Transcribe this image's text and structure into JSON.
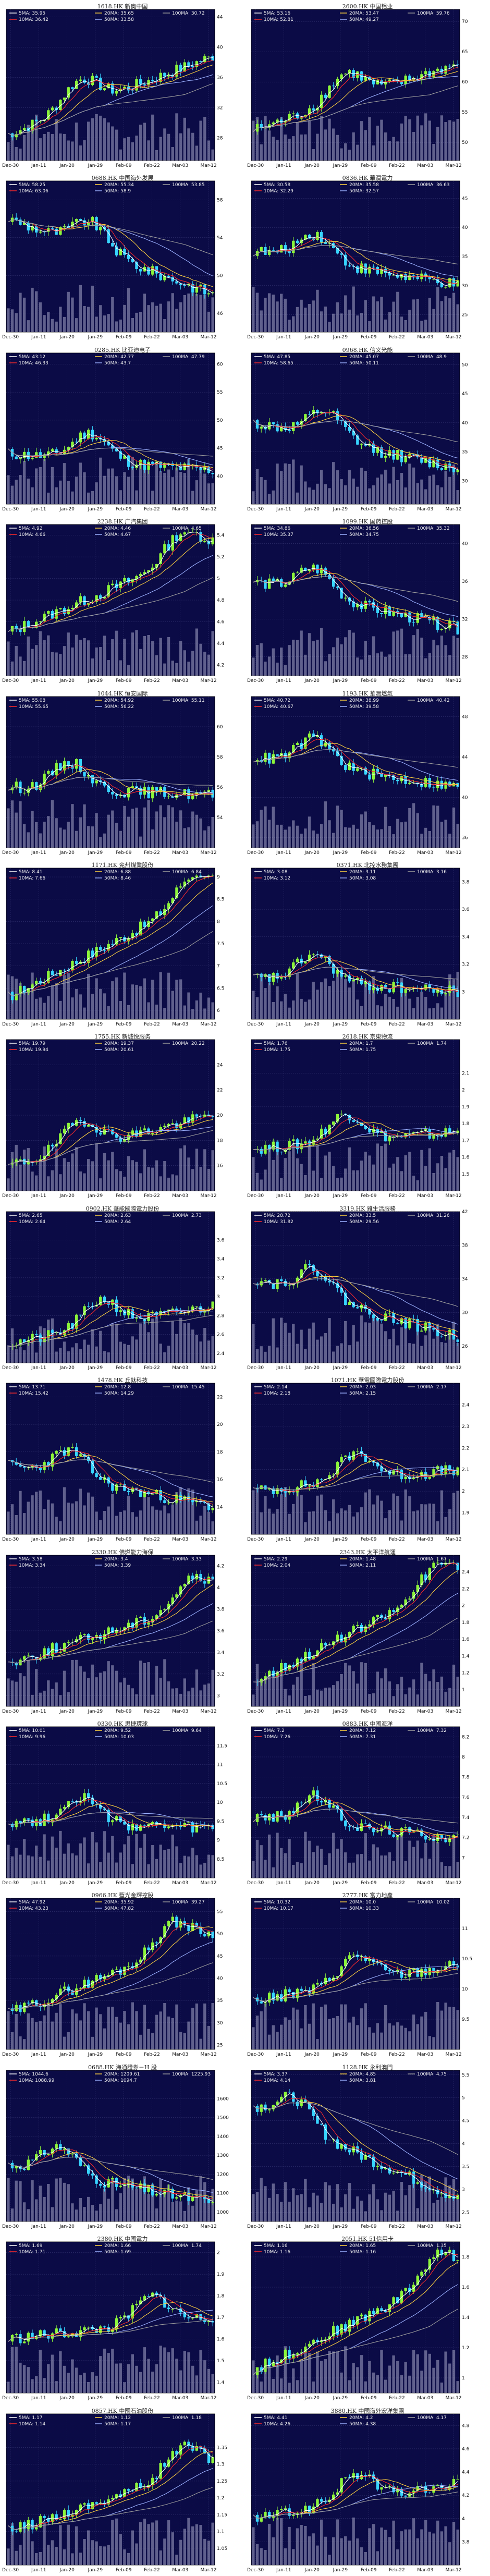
{
  "colors": {
    "background": "#0b0b46",
    "up": "#8cf53a",
    "down": "#37d4ff",
    "sma5": "#ffffff",
    "sma10": "#ff2a2a",
    "sma20": "#ffd23f",
    "sma50": "#9bb0ff",
    "sma100": "#9c9c9c",
    "volume": "#a7a7c9",
    "grid": "#3d3d7a"
  },
  "x_labels": [
    "Dec-30",
    "Jan-11",
    "Jan-20",
    "Jan-29",
    "Feb-09",
    "Feb-22",
    "Mar-03",
    "Mar-12"
  ],
  "legend_labels": {
    "sma5": "5MA",
    "sma10": "10MA",
    "sma20": "20MA",
    "sma50": "50MA",
    "sma100": "100MA"
  },
  "chart_data": [
    {
      "type": "candlestick",
      "title": "1618.HK 新奥中国",
      "ylim": [
        25,
        45
      ],
      "yticks": [
        28,
        32,
        36,
        40,
        44
      ],
      "start": 28.5,
      "end": 38.8,
      "peak": 0.35,
      "legend": {
        "sma5": "35.95",
        "sma10": "36.42",
        "sma20": "35.65",
        "sma50": "33.58",
        "sma100": "30.72"
      }
    },
    {
      "type": "candlestick",
      "title": "2600.HK 中国铝业",
      "ylim": [
        47,
        72
      ],
      "yticks": [
        50,
        55,
        60,
        65,
        70
      ],
      "start": 52,
      "end": 63,
      "peak": 0.45,
      "legend": {
        "sma5": "53.16",
        "sma10": "52.81",
        "sma20": "53.47",
        "sma50": "49.27",
        "sma100": "59.76"
      }
    },
    {
      "type": "candlestick",
      "title": "0688.HK 中国海外发展",
      "ylim": [
        44,
        60
      ],
      "yticks": [
        46,
        50,
        54,
        58
      ],
      "start": 56,
      "end": 48,
      "peak": 0.4,
      "legend": {
        "sma5": "58.25",
        "sma10": "63.06",
        "sma20": "55.34",
        "sma50": "58.9",
        "sma100": "53.85"
      }
    },
    {
      "type": "candlestick",
      "title": "0836.HK 華潤電力",
      "ylim": [
        22,
        48
      ],
      "yticks": [
        25,
        30,
        35,
        40,
        45
      ],
      "start": 36,
      "end": 30,
      "peak": 0.3,
      "legend": {
        "sma5": "30.58",
        "sma10": "32.29",
        "sma20": "35.58",
        "sma50": "32.57",
        "sma100": "36.63"
      }
    },
    {
      "type": "candlestick",
      "title": "0285.HK 比亚迪电子",
      "ylim": [
        35,
        62
      ],
      "yticks": [
        40,
        45,
        50,
        55,
        60
      ],
      "start": 44,
      "end": 41,
      "peak": 0.4,
      "legend": {
        "sma5": "43.12",
        "sma10": "46.33",
        "sma20": "42.77",
        "sma50": "43.7",
        "sma100": "47.79"
      }
    },
    {
      "type": "candlestick",
      "title": "0968.HK 信义光能",
      "ylim": [
        26,
        52
      ],
      "yticks": [
        30,
        35,
        40,
        45,
        50
      ],
      "start": 40,
      "end": 32,
      "peak": 0.35,
      "legend": {
        "sma5": "47.85",
        "sma10": "58.65",
        "sma20": "45.07",
        "sma50": "50.11",
        "sma100": "48.9"
      }
    },
    {
      "type": "candlestick",
      "title": "2238.HK 广汽集团",
      "ylim": [
        4.1,
        5.5
      ],
      "yticks": [
        4.2,
        4.4,
        4.6,
        4.8,
        5.0,
        5.2,
        5.4
      ],
      "start": 4.5,
      "end": 5.3,
      "peak": 0.85,
      "legend": {
        "sma5": "4.92",
        "sma10": "4.66",
        "sma20": "4.46",
        "sma50": "4.67",
        "sma100": "4.65"
      }
    },
    {
      "type": "candlestick",
      "title": "1099.HK 国药控股",
      "ylim": [
        26,
        42
      ],
      "yticks": [
        28,
        32,
        36,
        40
      ],
      "start": 36,
      "end": 31,
      "peak": 0.3,
      "legend": {
        "sma5": "34.86",
        "sma10": "35.37",
        "sma20": "36.56",
        "sma50": "34.75",
        "sma100": "35.32"
      }
    },
    {
      "type": "candlestick",
      "title": "1044.HK 恒安国际",
      "ylim": [
        52,
        62
      ],
      "yticks": [
        54,
        56,
        58,
        60
      ],
      "start": 56,
      "end": 55.5,
      "peak": 0.3,
      "legend": {
        "sma5": "55.08",
        "sma10": "55.65",
        "sma20": "54.92",
        "sma50": "56.22",
        "sma100": "55.11"
      }
    },
    {
      "type": "candlestick",
      "title": "1193.HK 華潤燃氣",
      "ylim": [
        35,
        50
      ],
      "yticks": [
        36,
        40,
        44,
        48
      ],
      "start": 44,
      "end": 41,
      "peak": 0.3,
      "legend": {
        "sma5": "40.72",
        "sma10": "40.67",
        "sma20": "38.99",
        "sma50": "39.58",
        "sma100": "40.42"
      }
    },
    {
      "type": "candlestick",
      "title": "1171.HK 兖州煤業股份",
      "ylim": [
        5.8,
        9.2
      ],
      "yticks": [
        6.0,
        6.5,
        7.0,
        7.5,
        8.0,
        8.5,
        9.0
      ],
      "start": 6.3,
      "end": 8.7,
      "peak": 0.9,
      "legend": {
        "sma5": "8.41",
        "sma10": "7.66",
        "sma20": "6.88",
        "sma50": "8.46",
        "sma100": "6.84"
      }
    },
    {
      "type": "candlestick",
      "title": "0371.HK 北控水務集團",
      "ylim": [
        2.8,
        3.9
      ],
      "yticks": [
        3.0,
        3.2,
        3.4,
        3.6,
        3.8
      ],
      "start": 3.1,
      "end": 3.0,
      "peak": 0.3,
      "legend": {
        "sma5": "3.08",
        "sma10": "3.12",
        "sma20": "3.11",
        "sma50": "3.08",
        "sma100": "3.16"
      }
    },
    {
      "type": "candlestick",
      "title": "1755.HK 新城悦服务",
      "ylim": [
        14,
        26
      ],
      "yticks": [
        16,
        18,
        20,
        22,
        24
      ],
      "start": 16,
      "end": 20,
      "peak": 0.35,
      "legend": {
        "sma5": "19.79",
        "sma10": "19.94",
        "sma20": "19.37",
        "sma50": "20.61",
        "sma100": "20.22"
      }
    },
    {
      "type": "candlestick",
      "title": "2618.HK 京東物流",
      "ylim": [
        1.4,
        2.3
      ],
      "yticks": [
        1.5,
        1.6,
        1.7,
        1.8,
        1.9,
        2.0,
        2.1
      ],
      "start": 1.65,
      "end": 1.75,
      "peak": 0.45,
      "legend": {
        "sma5": "1.76",
        "sma10": "1.75",
        "sma20": "1.7",
        "sma50": "1.75",
        "sma100": "1.74"
      }
    },
    {
      "type": "candlestick",
      "title": "0902.HK 華能國際電力股份",
      "ylim": [
        2.3,
        3.9
      ],
      "yticks": [
        2.4,
        2.6,
        2.8,
        3.0,
        3.2,
        3.4,
        3.6
      ],
      "start": 2.5,
      "end": 2.9,
      "peak": 0.45,
      "legend": {
        "sma5": "2.65",
        "sma10": "2.64",
        "sma20": "2.63",
        "sma50": "2.64",
        "sma100": "2.73"
      }
    },
    {
      "type": "candlestick",
      "title": "3319.HK 雅生活服務",
      "ylim": [
        24,
        42
      ],
      "yticks": [
        26,
        30,
        34,
        38,
        42
      ],
      "start": 34,
      "end": 27,
      "peak": 0.3,
      "legend": {
        "sma5": "28.72",
        "sma10": "31.82",
        "sma20": "33.5",
        "sma50": "29.56",
        "sma100": "31.26"
      }
    },
    {
      "type": "candlestick",
      "title": "1478.HK 丘鈦科技",
      "ylim": [
        12,
        23
      ],
      "yticks": [
        14,
        16,
        18,
        20,
        22
      ],
      "start": 17,
      "end": 14,
      "peak": 0.3,
      "legend": {
        "sma5": "13.71",
        "sma10": "15.42",
        "sma20": "12.8",
        "sma50": "14.29",
        "sma100": "15.45"
      }
    },
    {
      "type": "candlestick",
      "title": "1071.HK 華電國際電力股份",
      "ylim": [
        1.8,
        2.5
      ],
      "yticks": [
        1.9,
        2.0,
        2.1,
        2.2,
        2.3,
        2.4
      ],
      "start": 2.0,
      "end": 2.1,
      "peak": 0.5,
      "legend": {
        "sma5": "2.14",
        "sma10": "2.18",
        "sma20": "2.03",
        "sma50": "2.15",
        "sma100": "2.17"
      }
    },
    {
      "type": "candlestick",
      "title": "2330.HK 佛燃能力海保",
      "ylim": [
        2.9,
        4.3
      ],
      "yticks": [
        3.0,
        3.2,
        3.4,
        3.6,
        3.8,
        4.0,
        4.2
      ],
      "start": 3.3,
      "end": 3.9,
      "peak": 0.9,
      "legend": {
        "sma5": "3.58",
        "sma10": "3.34",
        "sma20": "3.4",
        "sma50": "3.39",
        "sma100": "3.33"
      }
    },
    {
      "type": "candlestick",
      "title": "2343.HK 太平洋航運",
      "ylim": [
        0.8,
        2.6
      ],
      "yticks": [
        1.0,
        1.2,
        1.4,
        1.6,
        1.8,
        2.0,
        2.2,
        2.4
      ],
      "start": 1.1,
      "end": 2.3,
      "peak": 0.9,
      "legend": {
        "sma5": "2.29",
        "sma10": "2.04",
        "sma20": "1.48",
        "sma50": "2.11",
        "sma100": "1.67"
      }
    },
    {
      "type": "candlestick",
      "title": "0330.HK 思捷環球",
      "ylim": [
        8.0,
        12.0
      ],
      "yticks": [
        8.5,
        9.0,
        9.5,
        10.0,
        10.5,
        11.0,
        11.5
      ],
      "start": 9.5,
      "end": 9.3,
      "peak": 0.35,
      "legend": {
        "sma5": "10.01",
        "sma10": "9.96",
        "sma20": "9.52",
        "sma50": "10.03",
        "sma100": "9.64"
      }
    },
    {
      "type": "candlestick",
      "title": "0883.HK 中國海洋",
      "ylim": [
        6.8,
        8.3
      ],
      "yticks": [
        7.0,
        7.2,
        7.4,
        7.6,
        7.8,
        8.0,
        8.2
      ],
      "start": 7.4,
      "end": 7.2,
      "peak": 0.3,
      "legend": {
        "sma5": "7.2",
        "sma10": "7.26",
        "sma20": "7.12",
        "sma50": "7.31",
        "sma100": "7.32"
      }
    },
    {
      "type": "candlestick",
      "title": "0966.HK 藍光金輝控股",
      "ylim": [
        24,
        58
      ],
      "yticks": [
        25,
        30,
        35,
        40,
        45,
        50,
        55
      ],
      "start": 32,
      "end": 50,
      "peak": 0.8,
      "legend": {
        "sma5": "47.92",
        "sma10": "43.23",
        "sma20": "35.92",
        "sma50": "47.82",
        "sma100": "39.27"
      }
    },
    {
      "type": "candlestick",
      "title": "2777.HK 富力地產",
      "ylim": [
        9,
        11.5
      ],
      "yticks": [
        9.5,
        10.0,
        10.5,
        11.0
      ],
      "start": 9.8,
      "end": 10.4,
      "peak": 0.5,
      "legend": {
        "sma5": "10.32",
        "sma10": "10.17",
        "sma20": "10.0",
        "sma50": "10.33",
        "sma100": "10.02"
      }
    },
    {
      "type": "candlestick",
      "title": "0688.HK 海通證券－H 股",
      "ylim": [
        950,
        1750
      ],
      "yticks": [
        1000,
        1100,
        1200,
        1300,
        1400,
        1500,
        1600
      ],
      "start": 1250,
      "end": 1050,
      "peak": 0.25,
      "legend": {
        "sma5": "1044.6",
        "sma10": "1088.99",
        "sma20": "1209.61",
        "sma50": "1094.7",
        "sma100": "1225.93"
      }
    },
    {
      "type": "candlestick",
      "title": "1128.HK 永利澳門",
      "ylim": [
        2.3,
        5.6
      ],
      "yticks": [
        2.5,
        3.0,
        3.5,
        4.0,
        4.5,
        5.0,
        5.5
      ],
      "start": 4.8,
      "end": 2.8,
      "peak": 0.2,
      "legend": {
        "sma5": "3.37",
        "sma10": "4.14",
        "sma20": "4.85",
        "sma50": "3.81",
        "sma100": "4.75"
      }
    },
    {
      "type": "candlestick",
      "title": "2380.HK 中國電力",
      "ylim": [
        1.35,
        2.05
      ],
      "yticks": [
        1.4,
        1.5,
        1.6,
        1.7,
        1.8,
        1.9,
        2.0
      ],
      "start": 1.6,
      "end": 1.7,
      "peak": 0.7,
      "legend": {
        "sma5": "1.69",
        "sma10": "1.71",
        "sma20": "1.66",
        "sma50": "1.69",
        "sma100": "1.74"
      }
    },
    {
      "type": "candlestick",
      "title": "2051.HK 51信用卡",
      "ylim": [
        0.9,
        1.9
      ],
      "yticks": [
        1.0,
        1.2,
        1.4,
        1.6,
        1.8
      ],
      "start": 1.05,
      "end": 1.7,
      "peak": 0.9,
      "legend": {
        "sma5": "1.16",
        "sma10": "1.16",
        "sma20": "1.65",
        "sma50": "1.16",
        "sma100": "1.35"
      }
    },
    {
      "type": "candlestick",
      "title": "0857.HK 中國石油股份",
      "ylim": [
        1.0,
        1.45
      ],
      "yticks": [
        1.05,
        1.1,
        1.15,
        1.2,
        1.25,
        1.3,
        1.35
      ],
      "start": 1.1,
      "end": 1.3,
      "peak": 0.85,
      "legend": {
        "sma5": "1.17",
        "sma10": "1.14",
        "sma20": "1.12",
        "sma50": "1.17",
        "sma100": "1.18"
      }
    },
    {
      "type": "candlestick",
      "title": "3880.HK 中國海外宏洋集團",
      "ylim": [
        3.6,
        4.9
      ],
      "yticks": [
        3.8,
        4.0,
        4.2,
        4.4,
        4.6,
        4.8
      ],
      "start": 4.0,
      "end": 4.3,
      "peak": 0.5,
      "legend": {
        "sma5": "4.41",
        "sma10": "4.26",
        "sma20": "4.2",
        "sma50": "4.38",
        "sma100": "4.17"
      }
    }
  ]
}
